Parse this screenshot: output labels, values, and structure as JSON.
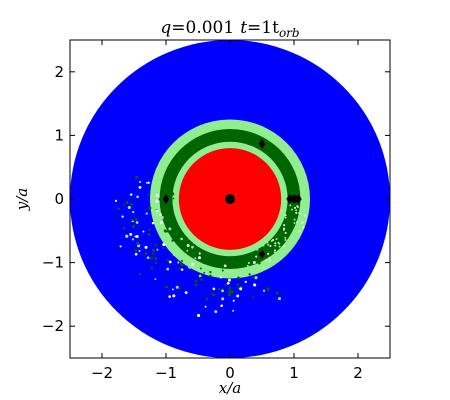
{
  "chart_data": {
    "type": "scatter",
    "title": {
      "q_label": "q",
      "q_value": "=0.001",
      "t_label": "t",
      "t_value": "=1t",
      "t_subscript": "orb"
    },
    "xlabel": "x/a",
    "ylabel": "y/a",
    "xlim": [
      -2.5,
      2.5
    ],
    "ylim": [
      -2.5,
      2.5
    ],
    "xticks": [
      -2,
      -1,
      0,
      1,
      2
    ],
    "yticks": [
      -2,
      -1,
      0,
      1,
      2
    ],
    "xtick_labels": [
      "−2",
      "−1",
      "0",
      "1",
      "2"
    ],
    "ytick_labels": [
      "−2",
      "−1",
      "0",
      "1",
      "2"
    ],
    "grid": false,
    "legend": "none",
    "regions": [
      {
        "id": "outer-disk",
        "shape": "annulus",
        "r_inner": 1.25,
        "r_outer": 2.5,
        "color": "#0000ff"
      },
      {
        "id": "outer-ring-light",
        "shape": "annulus",
        "r_inner": 1.1,
        "r_outer": 1.25,
        "color": "#90ee90"
      },
      {
        "id": "ring-dark",
        "shape": "annulus",
        "r_inner": 0.9,
        "r_outer": 1.1,
        "color": "#006400"
      },
      {
        "id": "inner-ring-light",
        "shape": "annulus",
        "r_inner": 0.8,
        "r_outer": 0.9,
        "color": "#90ee90"
      },
      {
        "id": "inner-disk",
        "shape": "disk",
        "r_outer": 0.8,
        "color": "#ff0000"
      }
    ],
    "markers": [
      {
        "name": "central-star",
        "x": 0.0,
        "y": 0.0,
        "shape": "circle"
      },
      {
        "name": "planet",
        "x": 1.0,
        "y": 0.0,
        "shape": "circle"
      },
      {
        "name": "l1",
        "x": 0.93,
        "y": 0.0,
        "shape": "diamond"
      },
      {
        "name": "l2",
        "x": 1.07,
        "y": 0.0,
        "shape": "diamond"
      },
      {
        "name": "l3",
        "x": -1.0,
        "y": 0.0,
        "shape": "diamond"
      },
      {
        "name": "l4",
        "x": 0.5,
        "y": 0.866,
        "shape": "diamond"
      },
      {
        "name": "l5",
        "x": 0.5,
        "y": -0.866,
        "shape": "diamond"
      }
    ],
    "colors": {
      "outer": "#0000ff",
      "light_green": "#90ee90",
      "dark_green": "#006400",
      "inner": "#ff0000",
      "marker": "#000000"
    }
  }
}
